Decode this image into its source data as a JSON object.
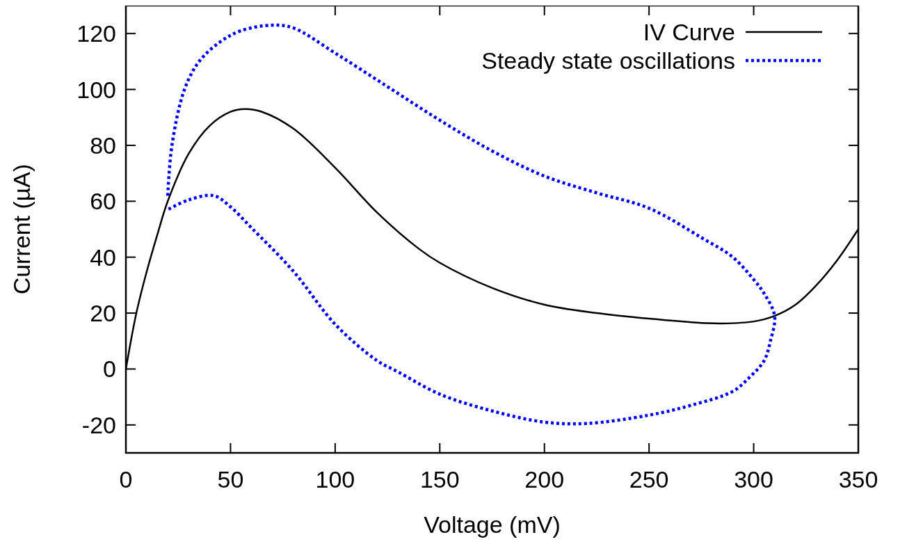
{
  "chart_data": {
    "type": "line",
    "xlabel": "Voltage (mV)",
    "ylabel": "Current (µA)",
    "xlim": [
      0,
      350
    ],
    "xticks": [
      0,
      50,
      100,
      150,
      200,
      250,
      300,
      350
    ],
    "ylim": [
      -30,
      130
    ],
    "yticks": [
      -20,
      0,
      20,
      40,
      60,
      80,
      100,
      120
    ],
    "grid": false,
    "legend": "top right",
    "series": [
      {
        "name": "IV Curve",
        "color": "#000000",
        "line_style": "solid",
        "x": [
          0,
          5,
          10,
          15,
          20,
          30,
          40,
          50,
          57,
          65,
          80,
          100,
          120,
          140,
          150,
          175,
          200,
          225,
          250,
          275,
          285,
          300,
          310,
          320,
          330,
          340,
          350
        ],
        "values": [
          0,
          20,
          35,
          48,
          60,
          77,
          87,
          92,
          93,
          92,
          86,
          72,
          56,
          43,
          38,
          29,
          23,
          20,
          18,
          16.5,
          16.3,
          17,
          19,
          23,
          30,
          39,
          50
        ]
      },
      {
        "name": "Steady state oscillations",
        "color": "#0000ff",
        "line_style": "dotted",
        "x": [
          20,
          22,
          28,
          35,
          45,
          55,
          70,
          80,
          100,
          125,
          150,
          175,
          200,
          225,
          250,
          275,
          290,
          300,
          305,
          310,
          308,
          305,
          298,
          290,
          270,
          250,
          220,
          200,
          175,
          150,
          130,
          120,
          100,
          80,
          60,
          50,
          42,
          30,
          20
        ],
        "values": [
          62,
          80,
          100,
          110,
          117,
          121,
          123,
          122,
          113,
          101,
          89,
          78,
          69,
          63,
          57.5,
          47,
          40,
          32,
          27,
          19,
          10,
          3,
          -3,
          -8,
          -13,
          -16.5,
          -19.5,
          -19,
          -15,
          -9,
          -1,
          3,
          16,
          35,
          50.5,
          58,
          62,
          60.5,
          57
        ]
      }
    ]
  }
}
